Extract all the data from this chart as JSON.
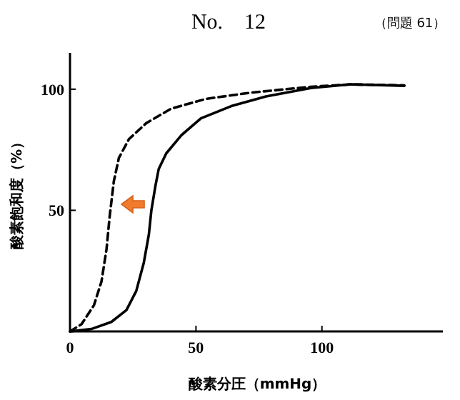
{
  "chart_data": {
    "type": "line",
    "title": "No.　12",
    "subtitle": "（問題 61）",
    "xlabel": "酸素分圧（mmHg）",
    "ylabel": "酸素飽和度（%）",
    "xlim": [
      0,
      148
    ],
    "ylim": [
      0,
      115
    ],
    "xticks": [
      {
        "value": 0,
        "label": "0"
      },
      50,
      100
    ],
    "yticks": [
      50,
      100
    ],
    "grid": false,
    "marker": "none",
    "series": [
      {
        "color": "#000000",
        "line_style": "dashed",
        "x": [
          0,
          4.6,
          9.5,
          12.5,
          14.5,
          15.8,
          17.4,
          19.4,
          23.4,
          30.3,
          40.2,
          54,
          71.9,
          95.6,
          111.5,
          132.7
        ],
        "values": [
          0,
          3,
          10.8,
          20.6,
          34,
          48,
          62,
          71.6,
          79.4,
          86,
          92,
          96,
          98.6,
          101,
          102,
          101.6
        ]
      },
      {
        "color": "#000000",
        "line_style": "solid",
        "x": [
          0,
          8.5,
          16.4,
          22.4,
          26.3,
          29.3,
          31.3,
          32.3,
          33.9,
          35.2,
          38.2,
          44.2,
          52,
          64,
          77.8,
          95.6,
          111.5,
          132.7
        ],
        "values": [
          0,
          1,
          3.9,
          8.8,
          16.7,
          28.4,
          40,
          50,
          60,
          67,
          73.5,
          81,
          88,
          93,
          97,
          100.5,
          102,
          101.4
        ]
      }
    ]
  }
}
